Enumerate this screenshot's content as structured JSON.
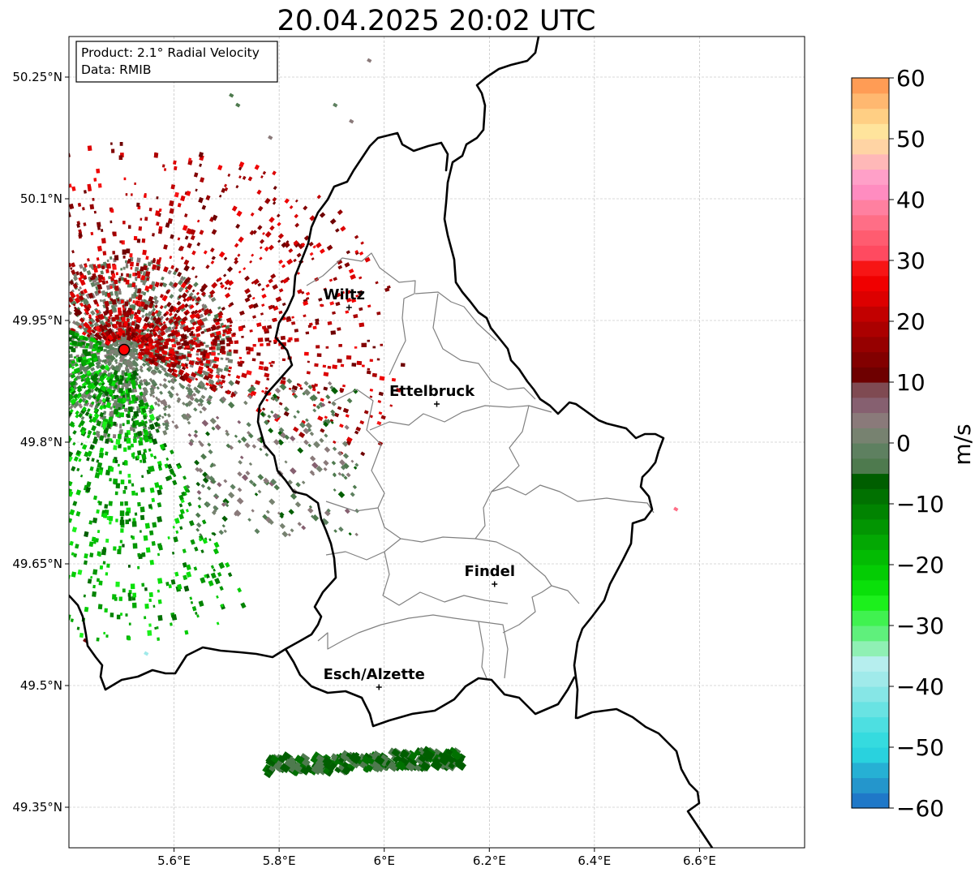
{
  "title": "20.04.2025 20:02 UTC",
  "info_box": {
    "product_line": "Product: 2.1° Radial Velocity",
    "data_line": "Data: RMIB"
  },
  "map": {
    "extent": {
      "lon_min": 5.4,
      "lon_max": 6.8,
      "lat_min": 49.3,
      "lat_max": 50.3
    },
    "x_ticks": [
      {
        "lon": 5.6,
        "label": "5.6°E"
      },
      {
        "lon": 5.8,
        "label": "5.8°E"
      },
      {
        "lon": 6.0,
        "label": "6°E"
      },
      {
        "lon": 6.2,
        "label": "6.2°E"
      },
      {
        "lon": 6.4,
        "label": "6.4°E"
      },
      {
        "lon": 6.6,
        "label": "6.6°E"
      }
    ],
    "y_ticks": [
      {
        "lat": 50.25,
        "label": "50.25°N"
      },
      {
        "lat": 50.1,
        "label": "50.1°N"
      },
      {
        "lat": 49.95,
        "label": "49.95°N"
      },
      {
        "lat": 49.8,
        "label": "49.8°N"
      },
      {
        "lat": 49.65,
        "label": "49.65°N"
      },
      {
        "lat": 49.5,
        "label": "49.5°N"
      },
      {
        "lat": 49.35,
        "label": "49.35°N"
      }
    ],
    "grid": true,
    "radar_site": {
      "lon": 5.505,
      "lat": 49.914
    },
    "cities": [
      {
        "name": "Wiltz",
        "lon": 5.933,
        "lat": 49.966
      },
      {
        "name": "Ettelbruck",
        "lon": 6.1,
        "lat": 49.847
      },
      {
        "name": "Findel",
        "lon": 6.21,
        "lat": 49.625
      },
      {
        "name": "Esch/Alzette",
        "lon": 5.99,
        "lat": 49.498
      }
    ]
  },
  "colorbar": {
    "label": "m/s",
    "min": -60,
    "max": 60,
    "ticks": [
      {
        "value": 60,
        "label": "60"
      },
      {
        "value": 50,
        "label": "50"
      },
      {
        "value": 40,
        "label": "40"
      },
      {
        "value": 30,
        "label": "30"
      },
      {
        "value": 20,
        "label": "20"
      },
      {
        "value": 10,
        "label": "10"
      },
      {
        "value": 0,
        "label": "0"
      },
      {
        "value": -10,
        "label": "−10"
      },
      {
        "value": -20,
        "label": "−20"
      },
      {
        "value": -30,
        "label": "−30"
      },
      {
        "value": -40,
        "label": "−40"
      },
      {
        "value": -50,
        "label": "−50"
      },
      {
        "value": -60,
        "label": "−60"
      }
    ],
    "color_bands": [
      {
        "from": -60,
        "to": -57.5,
        "color": "#1f78c8"
      },
      {
        "from": -57.5,
        "to": -55,
        "color": "#2496cc"
      },
      {
        "from": -55,
        "to": -52.5,
        "color": "#26b0d4"
      },
      {
        "from": -52.5,
        "to": -50,
        "color": "#29d2de"
      },
      {
        "from": -50,
        "to": -47.5,
        "color": "#35dbdf"
      },
      {
        "from": -47.5,
        "to": -45,
        "color": "#4ddfe1"
      },
      {
        "from": -45,
        "to": -42.5,
        "color": "#69e3e3"
      },
      {
        "from": -42.5,
        "to": -40,
        "color": "#86e6e6"
      },
      {
        "from": -40,
        "to": -37.5,
        "color": "#a0eaea"
      },
      {
        "from": -37.5,
        "to": -35,
        "color": "#b6eeee"
      },
      {
        "from": -35,
        "to": -32.5,
        "color": "#8ff0b4"
      },
      {
        "from": -32.5,
        "to": -30,
        "color": "#5ff07c"
      },
      {
        "from": -30,
        "to": -27.5,
        "color": "#40f250"
      },
      {
        "from": -27.5,
        "to": -25,
        "color": "#1cf01c"
      },
      {
        "from": -25,
        "to": -22.5,
        "color": "#0ae00a"
      },
      {
        "from": -22.5,
        "to": -20,
        "color": "#04cc04"
      },
      {
        "from": -20,
        "to": -17.5,
        "color": "#03bb03"
      },
      {
        "from": -17.5,
        "to": -15,
        "color": "#03a803"
      },
      {
        "from": -15,
        "to": -12.5,
        "color": "#029502"
      },
      {
        "from": -12.5,
        "to": -10,
        "color": "#018301"
      },
      {
        "from": -10,
        "to": -7.5,
        "color": "#017101"
      },
      {
        "from": -7.5,
        "to": -5,
        "color": "#005e00"
      },
      {
        "from": -5,
        "to": -2.5,
        "color": "#4e7a4e"
      },
      {
        "from": -2.5,
        "to": 0,
        "color": "#5e8060"
      },
      {
        "from": 0,
        "to": 2.5,
        "color": "#778270"
      },
      {
        "from": 2.5,
        "to": 5,
        "color": "#8a7a7a"
      },
      {
        "from": 5,
        "to": 7.5,
        "color": "#866070"
      },
      {
        "from": 7.5,
        "to": 10,
        "color": "#7f4a52"
      },
      {
        "from": 10,
        "to": 12.5,
        "color": "#6e0000"
      },
      {
        "from": 12.5,
        "to": 15,
        "color": "#820000"
      },
      {
        "from": 15,
        "to": 17.5,
        "color": "#960000"
      },
      {
        "from": 17.5,
        "to": 20,
        "color": "#ab0000"
      },
      {
        "from": 20,
        "to": 22.5,
        "color": "#c20000"
      },
      {
        "from": 22.5,
        "to": 25,
        "color": "#dd0000"
      },
      {
        "from": 25,
        "to": 27.5,
        "color": "#f00000"
      },
      {
        "from": 27.5,
        "to": 30,
        "color": "#f71515"
      },
      {
        "from": 30,
        "to": 32.5,
        "color": "#ff4a60"
      },
      {
        "from": 32.5,
        "to": 35,
        "color": "#ff5c70"
      },
      {
        "from": 35,
        "to": 37.5,
        "color": "#ff6e86"
      },
      {
        "from": 37.5,
        "to": 40,
        "color": "#ff80a0"
      },
      {
        "from": 40,
        "to": 42.5,
        "color": "#ff8cc0"
      },
      {
        "from": 42.5,
        "to": 45,
        "color": "#ffa0c8"
      },
      {
        "from": 45,
        "to": 47.5,
        "color": "#ffb8b8"
      },
      {
        "from": 47.5,
        "to": 50,
        "color": "#ffd4a4"
      },
      {
        "from": 50,
        "to": 52.5,
        "color": "#ffe49c"
      },
      {
        "from": 52.5,
        "to": 55,
        "color": "#ffcf84"
      },
      {
        "from": 55,
        "to": 57.5,
        "color": "#ffb870"
      },
      {
        "from": 57.5,
        "to": 60,
        "color": "#ff9c55"
      }
    ]
  },
  "colors": {
    "border": "#000000",
    "canton_lines": "#808080",
    "grid": "#b4b4b4",
    "radar_marker": "#ff0000"
  }
}
